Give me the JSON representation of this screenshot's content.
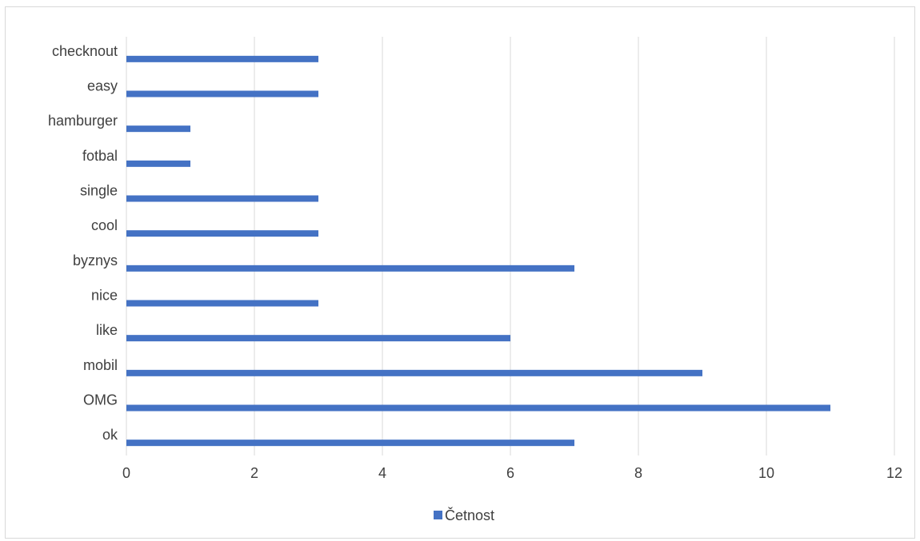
{
  "chart_data": {
    "type": "bar",
    "orientation": "horizontal",
    "categories": [
      "ok",
      "OMG",
      "mobil",
      "like",
      "nice",
      "byznys",
      "cool",
      "single",
      "fotbal",
      "hamburger",
      "easy",
      "checknout"
    ],
    "series": [
      {
        "name": "Četnost",
        "values": [
          7,
          11,
          9,
          6,
          3,
          7,
          3,
          3,
          1,
          1,
          3,
          3
        ],
        "color": "#4472c4"
      }
    ],
    "title": "",
    "xlabel": "",
    "ylabel": "",
    "xlim": [
      0,
      12
    ],
    "xticks": [
      0,
      2,
      4,
      6,
      8,
      10,
      12
    ],
    "grid": true,
    "legend": "bottom"
  }
}
